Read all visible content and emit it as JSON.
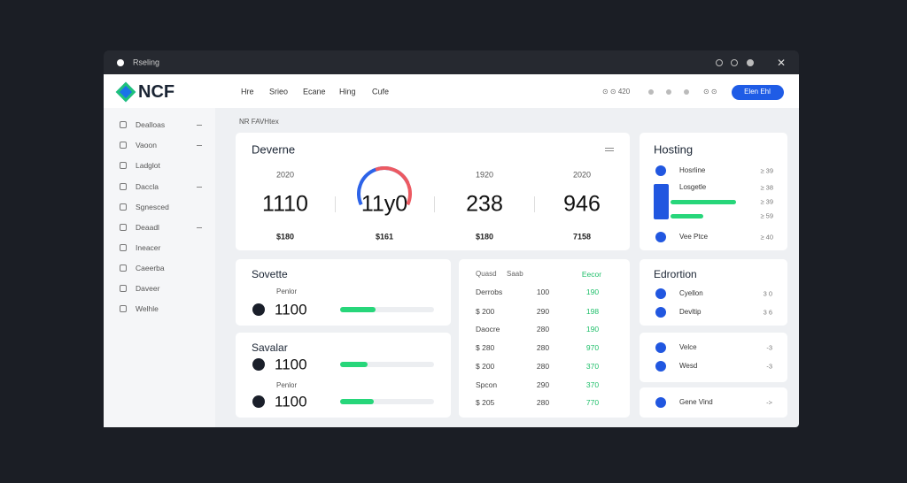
{
  "window": {
    "title": "Rseling"
  },
  "header": {
    "logo": "NCF",
    "nav": [
      "Hre",
      "Srieo",
      "Ecane",
      "Hing",
      "Cufe"
    ],
    "status": "⊙ ⊙ 420",
    "icons": "⊙ ⊙",
    "button": "Elen Ehl"
  },
  "sidebar": {
    "items": [
      "Dealloas",
      "Vaoon",
      "Ladglot",
      "Daccla",
      "Sgnesced",
      "Deaadl",
      "Ineacer",
      "Caeerba",
      "Daveer",
      "Welhle"
    ]
  },
  "breadcrumb": "NR FAVHtex",
  "overview": {
    "title": "Deverne",
    "stats": [
      {
        "year": "2020",
        "value": "1110",
        "sub": "$180"
      },
      {
        "value": "11y0",
        "sub": "$161"
      },
      {
        "year": "1920",
        "value": "238",
        "sub": "$180"
      },
      {
        "year": "2020",
        "value": "946",
        "sub": "7158"
      }
    ]
  },
  "hosting": {
    "title": "Hosting",
    "items": [
      {
        "label": "Hosrline",
        "value": "≥ 39"
      },
      {
        "label": "Losgetle",
        "value": "≥ 38"
      },
      {
        "value": "≥ 39"
      },
      {
        "value": "≥ 59"
      },
      {
        "label": "Vee Ptce",
        "value": "≥ 40"
      }
    ]
  },
  "cards": [
    {
      "title": "Sovette",
      "rows": [
        {
          "caption": "Penlor",
          "value": "1100"
        }
      ]
    },
    {
      "title": "Savalar",
      "rows": [
        {
          "value": "1100"
        },
        {
          "caption": "Penlor",
          "value": "1100"
        }
      ]
    }
  ],
  "table": {
    "header": [
      "Quasd",
      "Saab",
      "Eecor"
    ],
    "rows": [
      [
        "Derrobs",
        "100",
        "190"
      ],
      [
        "$ 200",
        "290",
        "198"
      ],
      [
        "Daocre",
        "280",
        "190"
      ],
      [
        "$ 280",
        "280",
        "970"
      ],
      [
        "$ 200",
        "280",
        "370"
      ],
      [
        "Spcon",
        "290",
        "370"
      ],
      [
        "$ 205",
        "280",
        "770"
      ]
    ]
  },
  "panels": [
    {
      "title": "Edrortion",
      "items": [
        {
          "label": "Cyellon",
          "value": "3 0"
        },
        {
          "label": "Devltip",
          "value": "3 6"
        }
      ]
    },
    {
      "items": [
        {
          "label": "Velce",
          "value": "-3"
        },
        {
          "label": "Wesd",
          "value": "-3"
        }
      ]
    },
    {
      "items": [
        {
          "label": "Gene Vind",
          "value": "->"
        }
      ]
    }
  ]
}
